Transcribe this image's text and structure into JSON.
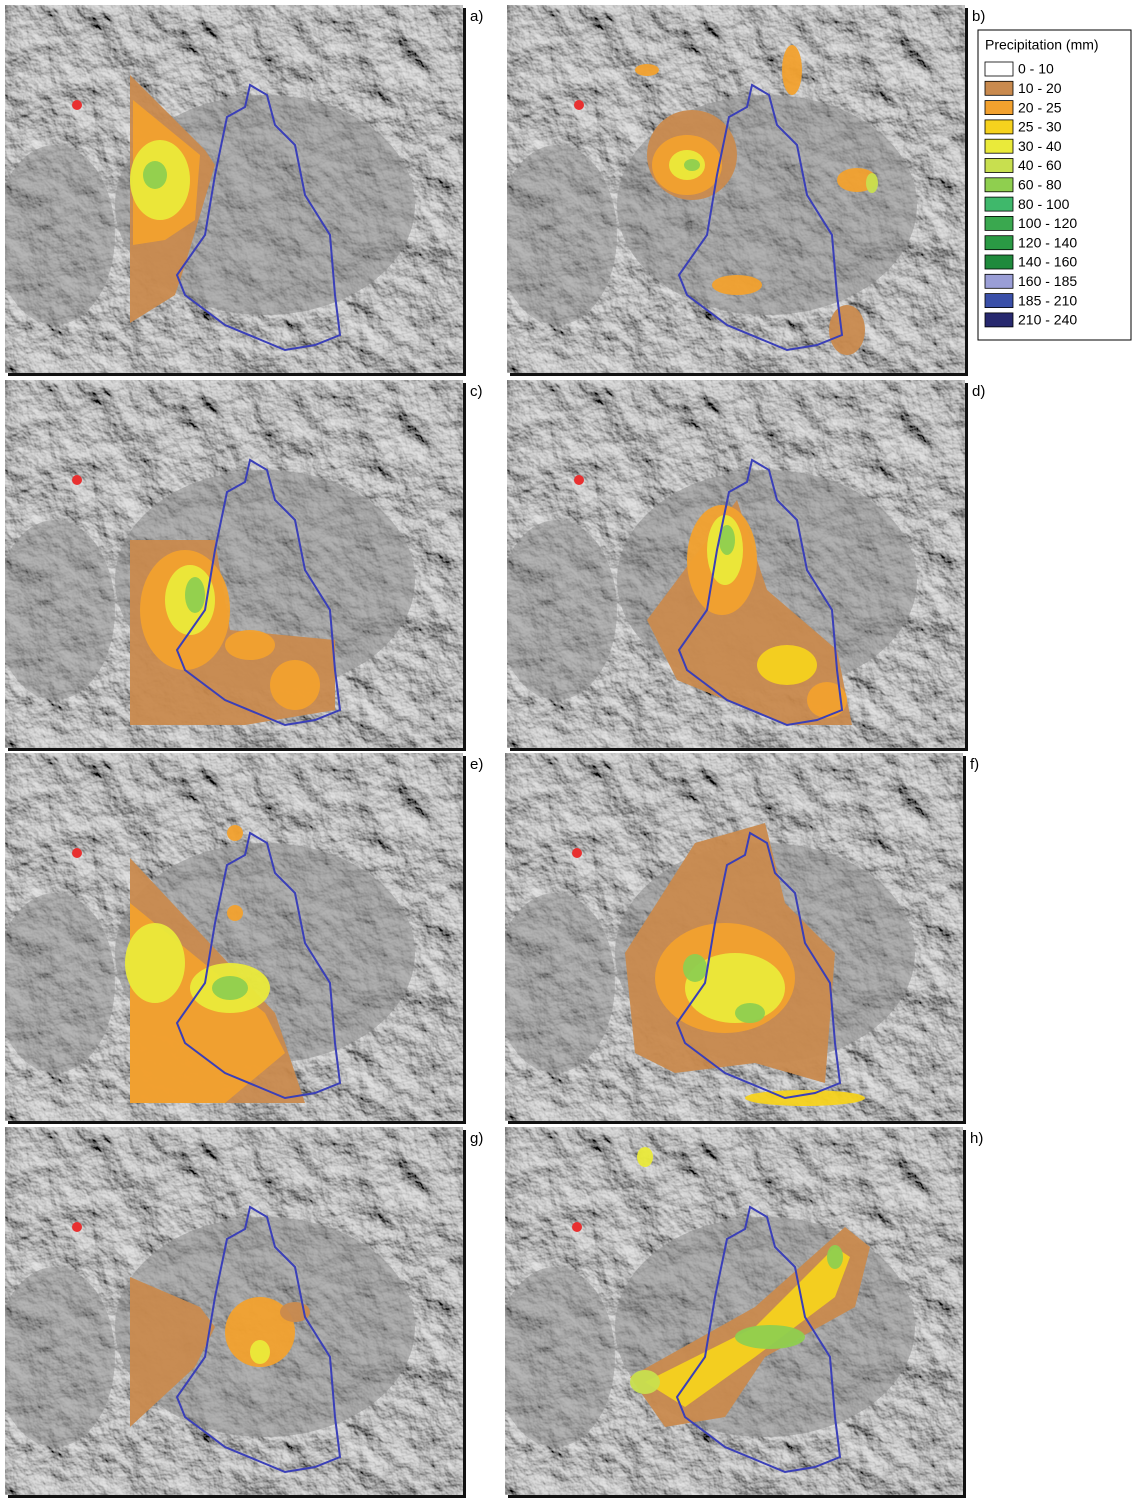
{
  "panels": [
    {
      "label": "a)"
    },
    {
      "label": "b)"
    },
    {
      "label": "c)"
    },
    {
      "label": "d)"
    },
    {
      "label": "e)"
    },
    {
      "label": "f)"
    },
    {
      "label": "g)"
    },
    {
      "label": "h)"
    }
  ],
  "legend": {
    "title": "Precipitation (mm)",
    "items": [
      {
        "label": "0 - 10",
        "color": "#ffffff"
      },
      {
        "label": "10 - 20",
        "color": "#c98a4e"
      },
      {
        "label": "20 - 25",
        "color": "#f2a12e"
      },
      {
        "label": "25 - 30",
        "color": "#f6d21e"
      },
      {
        "label": "30 - 40",
        "color": "#eaea3a"
      },
      {
        "label": "40 - 60",
        "color": "#c8df4f"
      },
      {
        "label": "60 - 80",
        "color": "#8fcf4f"
      },
      {
        "label": "80 - 100",
        "color": "#3fb86b"
      },
      {
        "label": "100 - 120",
        "color": "#3aa84f"
      },
      {
        "label": "120 - 140",
        "color": "#2a9a44"
      },
      {
        "label": "140 - 160",
        "color": "#1f8a3c"
      },
      {
        "label": "160 - 185",
        "color": "#9a9ed6"
      },
      {
        "label": "185 - 210",
        "color": "#3a4fa8"
      },
      {
        "label": "210 - 240",
        "color": "#27286e"
      }
    ]
  }
}
